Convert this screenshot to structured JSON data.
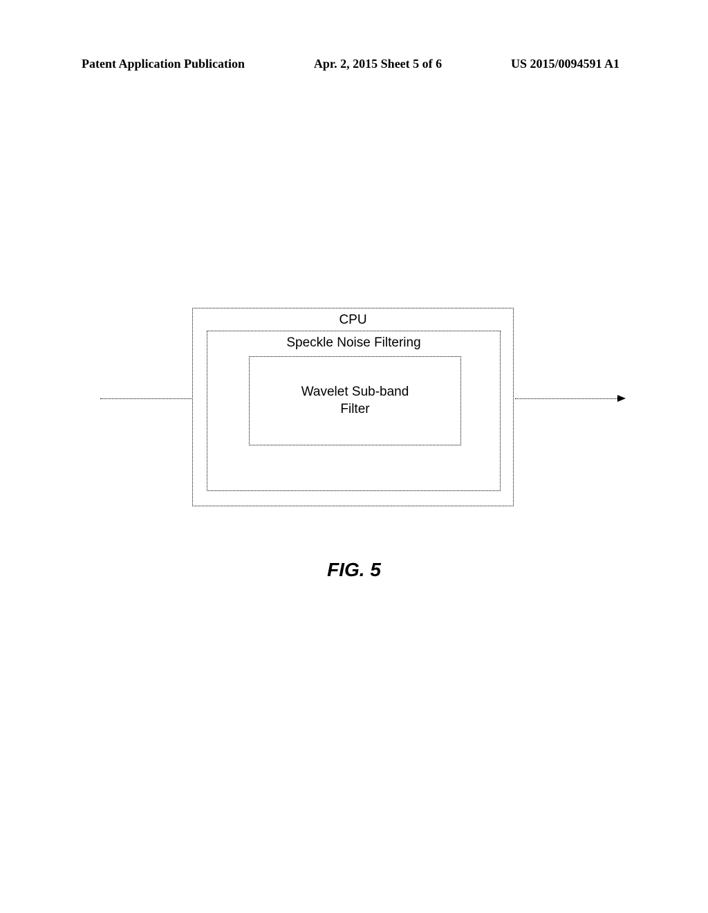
{
  "header": {
    "left": "Patent Application Publication",
    "center": "Apr. 2, 2015  Sheet 5 of 6",
    "right": "US 2015/0094591 A1"
  },
  "diagram": {
    "type": "block-diagram",
    "outer_label": "CPU",
    "middle_label": "Speckle Noise Filtering",
    "inner_label_line1": "Wavelet Sub-band",
    "inner_label_line2": "Filter",
    "border_style": "dotted",
    "border_color": "#000000",
    "background_color": "#ffffff",
    "label_fontsize": 19,
    "label_font": "Arial"
  },
  "caption": "FIG. 5",
  "caption_style": {
    "fontsize": 28,
    "weight": "bold",
    "style": "italic",
    "font": "Arial"
  }
}
